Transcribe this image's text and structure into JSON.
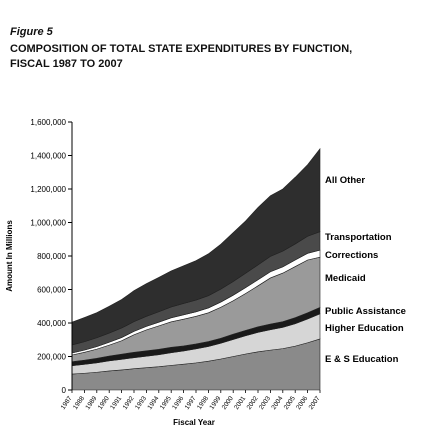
{
  "figure_label": "Figure 5",
  "title_line1": "COMPOSITION OF TOTAL STATE EXPENDITURES BY FUNCTION,",
  "title_line2": "FISCAL 1987 TO 2007",
  "chart_data": {
    "type": "area",
    "stacked": true,
    "xlabel": "Fiscal Year",
    "ylabel": "Amount In Millions",
    "ylim": [
      0,
      1600000
    ],
    "yticks": [
      0,
      200000,
      400000,
      600000,
      800000,
      1000000,
      1200000,
      1400000,
      1600000
    ],
    "ytick_labels": [
      "0",
      "200,000",
      "400,000",
      "600,000",
      "800,000",
      "1,000,000",
      "1,200,000",
      "1,400,000",
      "1,600,000"
    ],
    "x": [
      "1987",
      "1988",
      "1989",
      "1990",
      "1991",
      "1992",
      "1993",
      "1994",
      "1995",
      "1996",
      "1997",
      "1998",
      "1999",
      "2000",
      "2001",
      "2002",
      "2003",
      "2004",
      "2005",
      "2006",
      "2007"
    ],
    "series": [
      {
        "name": "E & S Education",
        "color": "#8a8a8a",
        "values": [
          95000,
          100000,
          106000,
          114000,
          120000,
          127000,
          133000,
          139000,
          147000,
          154000,
          162000,
          172000,
          185000,
          200000,
          215000,
          228000,
          238000,
          247000,
          262000,
          282000,
          305000
        ]
      },
      {
        "name": "Higher Education",
        "color": "#d6d6d6",
        "values": [
          50000,
          53000,
          56000,
          60000,
          63000,
          66000,
          69000,
          72000,
          76000,
          79000,
          84000,
          88000,
          94000,
          102000,
          109000,
          116000,
          122000,
          127000,
          134000,
          142000,
          150000
        ]
      },
      {
        "name": "Public Assistance",
        "color": "#1a1a1a",
        "values": [
          24000,
          25000,
          27000,
          29000,
          31000,
          32000,
          32000,
          32000,
          32000,
          30000,
          29000,
          29000,
          30000,
          31000,
          32000,
          33000,
          34000,
          34000,
          36000,
          37000,
          38000
        ]
      },
      {
        "name": "Medicaid",
        "color": "#9a9a9a",
        "values": [
          40000,
          47000,
          55000,
          65000,
          80000,
          105000,
          125000,
          140000,
          152000,
          160000,
          165000,
          172000,
          185000,
          200000,
          220000,
          245000,
          275000,
          290000,
          305000,
          315000,
          300000
        ]
      },
      {
        "name": "Corrections",
        "color": "#ffffff",
        "values": [
          12000,
          13000,
          15000,
          17000,
          19000,
          20000,
          21000,
          22000,
          24000,
          26000,
          27000,
          29000,
          31000,
          33000,
          35000,
          36000,
          37000,
          37000,
          39000,
          40000,
          42000
        ]
      },
      {
        "name": "Transportation",
        "color": "#4a4a4a",
        "values": [
          48000,
          50000,
          53000,
          55000,
          57000,
          58000,
          60000,
          62000,
          65000,
          68000,
          70000,
          73000,
          77000,
          82000,
          86000,
          89000,
          92000,
          94000,
          96000,
          102000,
          110000
        ]
      },
      {
        "name": "All Other",
        "color": "#2e2e2e",
        "values": [
          136000,
          145000,
          150000,
          160000,
          170000,
          185000,
          195000,
          205000,
          215000,
          225000,
          235000,
          250000,
          268000,
          292000,
          312000,
          343000,
          362000,
          371000,
          398000,
          427000,
          495000
        ]
      }
    ]
  }
}
